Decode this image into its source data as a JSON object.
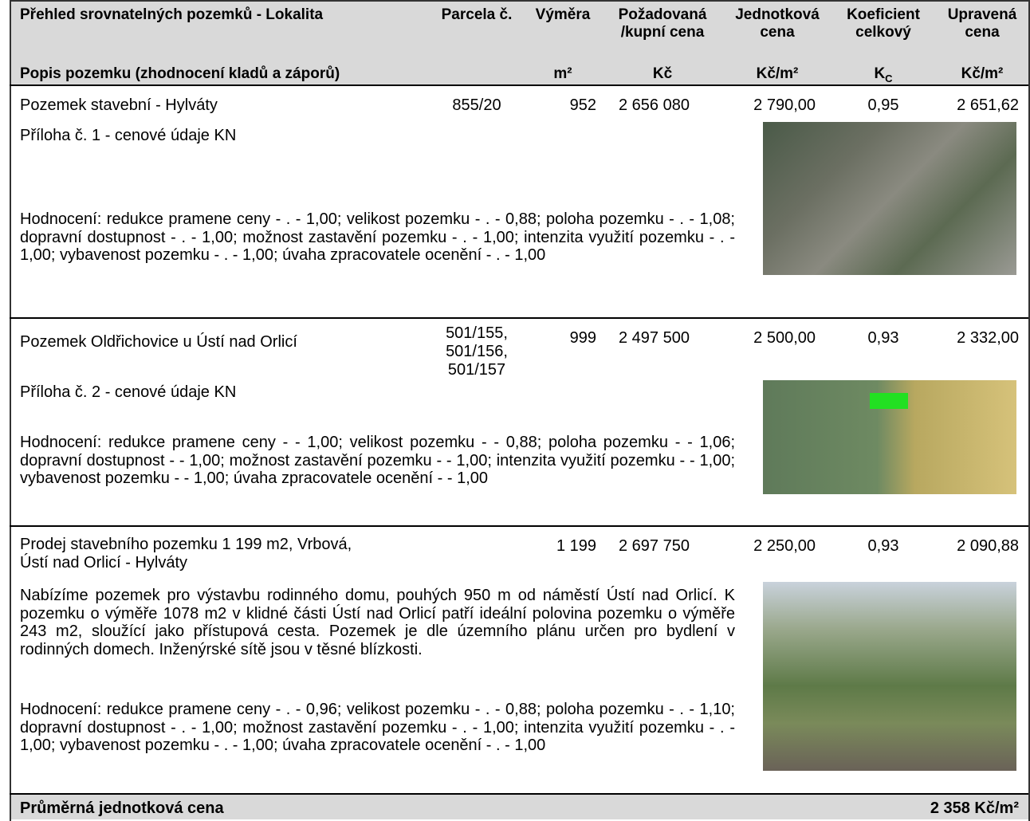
{
  "header": {
    "title": "Přehled srovnatelných pozemků - Lokalita",
    "subtitle": "Popis pozemku (zhodnocení kladů a záporů)",
    "columns": [
      {
        "lines": [
          "Parcela č."
        ]
      },
      {
        "lines": [
          "Výměra"
        ],
        "unit": "m²"
      },
      {
        "lines": [
          "Požadovaná",
          "/kupní cena"
        ],
        "unit": "Kč"
      },
      {
        "lines": [
          "Jednotková",
          "cena"
        ],
        "unit": "Kč/m²"
      },
      {
        "lines": [
          "Koeficient",
          "celkový"
        ],
        "unit_base": "K",
        "unit_sub": "C"
      },
      {
        "lines": [
          "Upravená",
          "cena"
        ],
        "unit": "Kč/m²"
      }
    ]
  },
  "rows": [
    {
      "name": [
        "Pozemek stavební - Hylváty"
      ],
      "parcel": [
        "855/20"
      ],
      "area": "952",
      "price": "2 656 080",
      "unit_price": "2 790,00",
      "coef": "0,95",
      "adjusted": "2 651,62",
      "attachment": "Příloha č. 1 - cenové údaje KN",
      "evaluation": "Hodnocení: redukce pramene ceny - . - 1,00; velikost pozemku - . - 0,88; poloha pozemku - . - 1,08; dopravní dostupnost - . - 1,00; možnost zastavění pozemku - . - 1,00; intenzita využití pozemku - . - 1,00; vybavenost pozemku - . - 1,00; úvaha zpracovatele ocenění - . - 1,00"
    },
    {
      "name": [
        "Pozemek Oldřichovice u Ústí nad Orlicí"
      ],
      "parcel": [
        "501/155,",
        "501/156,",
        "501/157"
      ],
      "area": "999",
      "price": "2 497 500",
      "unit_price": "2 500,00",
      "coef": "0,93",
      "adjusted": "2 332,00",
      "attachment": "Příloha č. 2 - cenové údaje KN",
      "evaluation": "Hodnocení: redukce pramene ceny -  - 1,00; velikost pozemku -  - 0,88; poloha pozemku -  - 1,06; dopravní dostupnost -  - 1,00; možnost zastavění pozemku -  - 1,00; intenzita využití pozemku -  - 1,00; vybavenost pozemku -  - 1,00; úvaha zpracovatele ocenění -  - 1,00"
    },
    {
      "name": [
        "Prodej stavebního pozemku 1 199 m2, Vrbová,",
        "Ústí nad Orlicí - Hylváty"
      ],
      "area": "1 199",
      "price": "2 697 750",
      "unit_price": "2 250,00",
      "coef": "0,93",
      "adjusted": "2 090,88",
      "description": "Nabízíme pozemek pro výstavbu rodinného domu, pouhých 950 m od náměstí Ústí nad Orlicí. K pozemku o výměře 1078 m2 v klidné části Ústí nad Orlicí patří ideální polovina pozemku o výměře 243 m2, sloužící jako přístupová cesta. Pozemek je dle územního plánu určen pro bydlení v rodinných domech. Inženýrské sítě jsou v těsné blízkosti.",
      "evaluation": "Hodnocení: redukce pramene ceny - . - 0,96; velikost pozemku - . - 0,88; poloha pozemku - . - 1,10; dopravní dostupnost - . - 1,00; možnost zastavění pozemku - . - 1,00; intenzita využití pozemku - . - 1,00; vybavenost pozemku - . - 1,00; úvaha zpracovatele ocenění - . - 1,00"
    }
  ],
  "footer": {
    "label": "Průměrná jednotková cena",
    "value": "2 358 Kč/m²"
  }
}
